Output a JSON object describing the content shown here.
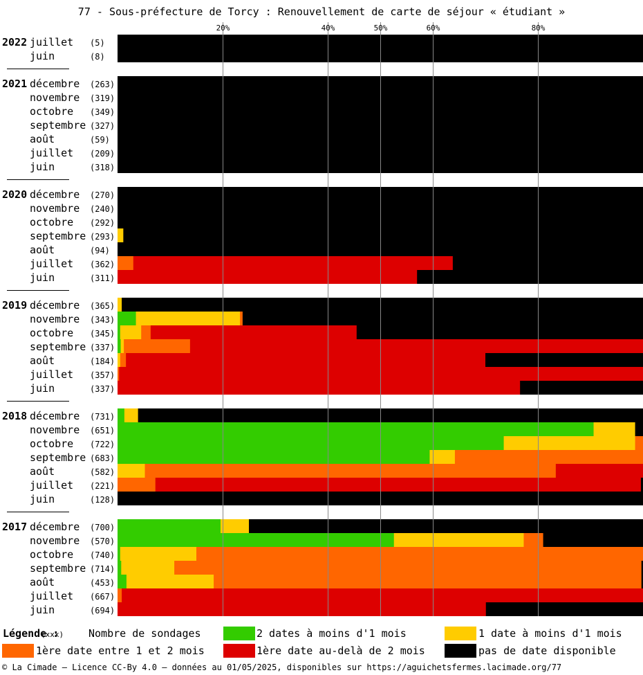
{
  "chart_data": {
    "type": "stacked-bar-horizontal",
    "title": "77 - Sous-préfecture de Torcy : Renouvellement de carte de séjour « étudiant »",
    "x_ticks": [
      "20%",
      "40%",
      "50%",
      "60%",
      "80%"
    ],
    "xlim": [
      0,
      100
    ],
    "grid": true,
    "colors": {
      "lt1m_2dates": "#33cc00",
      "lt1m_1date": "#ffcc00",
      "m1to2": "#ff6600",
      "gt2m": "#dd0000",
      "none": "#000000"
    },
    "legend": {
      "title": "Légende :",
      "count_marker": "(xxx)",
      "count_label": "Nombre de sondages",
      "items": [
        {
          "key": "lt1m_2dates",
          "label": "2 dates à moins d'1 mois"
        },
        {
          "key": "lt1m_1date",
          "label": "1 date à moins d'1 mois"
        },
        {
          "key": "m1to2",
          "label": "1ère date entre 1 et 2 mois"
        },
        {
          "key": "gt2m",
          "label": "1ère date au-delà de 2 mois"
        },
        {
          "key": "none",
          "label": "pas de date disponible"
        }
      ]
    },
    "groups": [
      {
        "year": "2022",
        "rows": [
          {
            "month": "juillet",
            "count": "(5)",
            "values": [
              0,
              0,
              0,
              0,
              100
            ]
          },
          {
            "month": "juin",
            "count": "(8)",
            "values": [
              0,
              0,
              0,
              0,
              100
            ]
          }
        ]
      },
      {
        "year": "2021",
        "rows": [
          {
            "month": "décembre",
            "count": "(263)",
            "values": [
              0,
              0,
              0,
              0,
              100
            ]
          },
          {
            "month": "novembre",
            "count": "(319)",
            "values": [
              0,
              0,
              0,
              0,
              100
            ]
          },
          {
            "month": "octobre",
            "count": "(349)",
            "values": [
              0,
              0,
              0,
              0,
              100
            ]
          },
          {
            "month": "septembre",
            "count": "(327)",
            "values": [
              0,
              0,
              0,
              0,
              100
            ]
          },
          {
            "month": "août",
            "count": "(59)",
            "values": [
              0,
              0,
              0,
              0,
              100
            ]
          },
          {
            "month": "juillet",
            "count": "(209)",
            "values": [
              0,
              0,
              0,
              0,
              100
            ]
          },
          {
            "month": "juin",
            "count": "(318)",
            "values": [
              0,
              0,
              0,
              0,
              100
            ]
          }
        ]
      },
      {
        "year": "2020",
        "rows": [
          {
            "month": "décembre",
            "count": "(270)",
            "values": [
              0,
              0,
              0,
              0,
              100
            ]
          },
          {
            "month": "novembre",
            "count": "(240)",
            "values": [
              0,
              0,
              0,
              0,
              100
            ]
          },
          {
            "month": "octobre",
            "count": "(292)",
            "values": [
              0,
              0,
              0,
              0,
              100
            ]
          },
          {
            "month": "septembre",
            "count": "(293)",
            "values": [
              0,
              1.1,
              0,
              0,
              98.9
            ]
          },
          {
            "month": "août",
            "count": "(94)",
            "values": [
              0,
              0,
              0,
              0,
              100
            ]
          },
          {
            "month": "juillet",
            "count": "(362)",
            "values": [
              0,
              0,
              3.0,
              60.8,
              36.2
            ]
          },
          {
            "month": "juin",
            "count": "(311)",
            "values": [
              0,
              0,
              0,
              57.0,
              43.0
            ]
          }
        ]
      },
      {
        "year": "2019",
        "rows": [
          {
            "month": "décembre",
            "count": "(365)",
            "values": [
              0,
              0.8,
              0,
              0,
              99.2
            ]
          },
          {
            "month": "novembre",
            "count": "(343)",
            "values": [
              3.5,
              19.8,
              0.5,
              0,
              76.2
            ]
          },
          {
            "month": "octobre",
            "count": "(345)",
            "values": [
              0.5,
              4.0,
              1.8,
              39.2,
              54.5
            ]
          },
          {
            "month": "septembre",
            "count": "(337)",
            "values": [
              0.6,
              0.6,
              12.6,
              86.2,
              0
            ]
          },
          {
            "month": "août",
            "count": "(184)",
            "values": [
              0,
              0.5,
              1.1,
              68.4,
              30.0
            ]
          },
          {
            "month": "juillet",
            "count": "(357)",
            "values": [
              0,
              0,
              0.3,
              99.7,
              0
            ]
          },
          {
            "month": "juin",
            "count": "(337)",
            "values": [
              0,
              0,
              0,
              76.6,
              23.4
            ]
          }
        ]
      },
      {
        "year": "2018",
        "rows": [
          {
            "month": "décembre",
            "count": "(731)",
            "values": [
              1.3,
              2.6,
              0,
              0,
              96.1
            ]
          },
          {
            "month": "novembre",
            "count": "(651)",
            "values": [
              90.6,
              7.9,
              0,
              0,
              1.5
            ]
          },
          {
            "month": "octobre",
            "count": "(722)",
            "values": [
              73.5,
              25.0,
              1.5,
              0,
              0
            ]
          },
          {
            "month": "septembre",
            "count": "(683)",
            "values": [
              59.4,
              4.8,
              35.8,
              0,
              0
            ]
          },
          {
            "month": "août",
            "count": "(582)",
            "values": [
              0,
              5.2,
              78.2,
              16.6,
              0
            ]
          },
          {
            "month": "juillet",
            "count": "(221)",
            "values": [
              0,
              0,
              7.2,
              92.4,
              0.4
            ]
          },
          {
            "month": "juin",
            "count": "(128)",
            "values": [
              0,
              0,
              0,
              0,
              100
            ]
          }
        ]
      },
      {
        "year": "2017",
        "rows": [
          {
            "month": "décembre",
            "count": "(700)",
            "values": [
              19.6,
              5.4,
              0,
              0,
              75.0
            ]
          },
          {
            "month": "novembre",
            "count": "(570)",
            "values": [
              52.6,
              24.7,
              3.7,
              0,
              19.0
            ]
          },
          {
            "month": "octobre",
            "count": "(740)",
            "values": [
              0.5,
              14.5,
              85.0,
              0,
              0
            ]
          },
          {
            "month": "septembre",
            "count": "(714)",
            "values": [
              0.7,
              10.1,
              88.9,
              0,
              0.3
            ]
          },
          {
            "month": "août",
            "count": "(453)",
            "values": [
              1.7,
              16.6,
              81.4,
              0,
              0.3
            ]
          },
          {
            "month": "juillet",
            "count": "(667)",
            "values": [
              0,
              0,
              0.8,
              99.2,
              0
            ]
          },
          {
            "month": "juin",
            "count": "(694)",
            "values": [
              0,
              0,
              0,
              70.1,
              29.9
            ]
          }
        ]
      }
    ]
  },
  "footer": "© La Cimade — Licence CC-By 4.0 — données au 01/05/2025, disponibles sur https://aguichetsfermes.lacimade.org/77"
}
